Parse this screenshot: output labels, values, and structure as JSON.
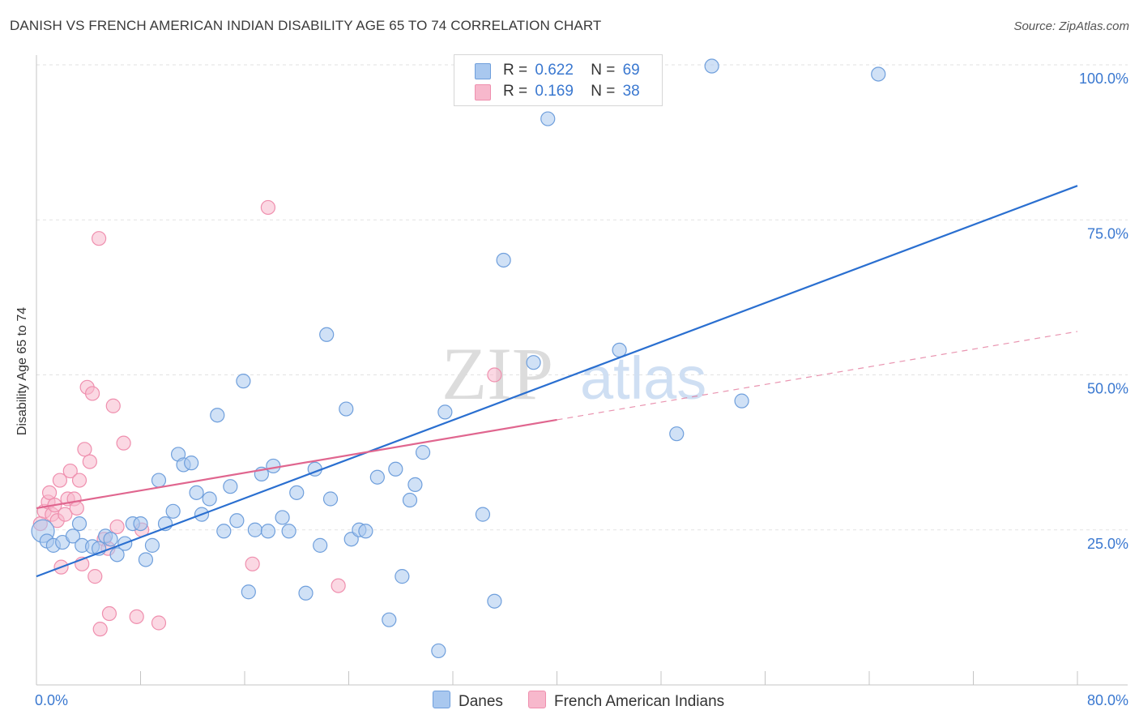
{
  "header": {
    "title": "DANISH VS FRENCH AMERICAN INDIAN DISABILITY AGE 65 TO 74 CORRELATION CHART",
    "source": "Source: ZipAtlas.com"
  },
  "watermark": {
    "zip": "ZIP",
    "atlas": "atlas"
  },
  "legend_top": {
    "rows": [
      {
        "r_label": "R =",
        "r_value": "0.622",
        "n_label": "N =",
        "n_value": "69"
      },
      {
        "r_label": "R =",
        "r_value": "0.169",
        "n_label": "N =",
        "n_value": "38"
      }
    ]
  },
  "legend_bottom": {
    "items": [
      "Danes",
      "French American Indians"
    ]
  },
  "colors": {
    "danes_fill": "#a9c8ef",
    "danes_stroke": "#6f9fdc",
    "danes_line": "#2a6fd0",
    "french_fill": "#f7b8cc",
    "french_stroke": "#ef8fae",
    "french_line": "#e0668f",
    "axis_label": "#3a78d0",
    "grid": "#e2e2e2"
  },
  "chart_data": {
    "type": "scatter",
    "title": "DANISH VS FRENCH AMERICAN INDIAN DISABILITY AGE 65 TO 74 CORRELATION CHART",
    "xlabel": "",
    "ylabel": "Disability Age 65 to 74",
    "xlim": [
      0,
      80
    ],
    "ylim": [
      0,
      100
    ],
    "x_tick_labels": [
      "0.0%",
      "80.0%"
    ],
    "y_ticks": [
      25,
      50,
      75,
      100
    ],
    "y_tick_labels": [
      "25.0%",
      "50.0%",
      "75.0%",
      "100.0%"
    ],
    "grid": true,
    "legend_position": "bottom",
    "series": [
      {
        "name": "Danes",
        "R": 0.622,
        "N": 69,
        "trend": {
          "x": [
            0,
            80
          ],
          "y": [
            17.5,
            80.5
          ],
          "dashed_from": null
        },
        "points": [
          [
            0.5,
            24.8,
            "big"
          ],
          [
            0.8,
            23.2
          ],
          [
            1.3,
            22.5
          ],
          [
            2.0,
            23.0
          ],
          [
            2.8,
            24.0
          ],
          [
            3.3,
            26.0
          ],
          [
            3.5,
            22.5
          ],
          [
            4.3,
            22.3
          ],
          [
            4.8,
            22.0
          ],
          [
            5.3,
            24.0
          ],
          [
            5.7,
            23.5
          ],
          [
            6.2,
            21.0
          ],
          [
            6.8,
            22.8
          ],
          [
            7.4,
            26.0
          ],
          [
            8.0,
            26.0
          ],
          [
            8.4,
            20.2
          ],
          [
            8.9,
            22.5
          ],
          [
            9.4,
            33.0
          ],
          [
            9.9,
            26.0
          ],
          [
            10.5,
            28.0
          ],
          [
            10.9,
            37.2
          ],
          [
            11.3,
            35.5
          ],
          [
            11.9,
            35.8
          ],
          [
            12.3,
            31.0
          ],
          [
            12.7,
            27.5
          ],
          [
            13.3,
            30.0
          ],
          [
            13.9,
            43.5
          ],
          [
            14.4,
            24.8
          ],
          [
            14.9,
            32.0
          ],
          [
            15.4,
            26.5
          ],
          [
            15.9,
            49.0
          ],
          [
            16.3,
            15.0
          ],
          [
            16.8,
            25.0
          ],
          [
            17.3,
            34.0
          ],
          [
            17.8,
            24.8
          ],
          [
            18.2,
            35.3
          ],
          [
            18.9,
            27.0
          ],
          [
            19.4,
            24.8
          ],
          [
            20.0,
            31.0
          ],
          [
            20.7,
            14.8
          ],
          [
            21.4,
            34.8
          ],
          [
            21.8,
            22.5
          ],
          [
            22.3,
            56.5
          ],
          [
            22.6,
            30.0
          ],
          [
            23.8,
            44.5
          ],
          [
            24.2,
            23.5
          ],
          [
            24.8,
            25.0
          ],
          [
            25.3,
            24.8
          ],
          [
            26.2,
            33.5
          ],
          [
            27.1,
            10.5
          ],
          [
            27.6,
            34.8
          ],
          [
            28.1,
            17.5
          ],
          [
            28.7,
            29.8
          ],
          [
            29.1,
            32.3
          ],
          [
            29.7,
            37.5
          ],
          [
            30.9,
            5.5
          ],
          [
            31.4,
            44.0
          ],
          [
            34.3,
            27.5
          ],
          [
            35.2,
            13.5
          ],
          [
            35.9,
            68.5
          ],
          [
            38.2,
            52.0
          ],
          [
            39.3,
            91.3
          ],
          [
            44.8,
            54.0
          ],
          [
            49.2,
            40.5
          ],
          [
            51.9,
            99.8
          ],
          [
            54.2,
            45.8
          ],
          [
            64.7,
            98.5
          ]
        ]
      },
      {
        "name": "French American Indians",
        "R": 0.169,
        "N": 38,
        "trend": {
          "x": [
            0,
            80
          ],
          "y": [
            28.5,
            57.0
          ],
          "dashed_from": 40
        },
        "points": [
          [
            0.3,
            26.0
          ],
          [
            0.6,
            28.0
          ],
          [
            0.9,
            29.5
          ],
          [
            1.0,
            31.0
          ],
          [
            1.2,
            27.5
          ],
          [
            1.4,
            29.0
          ],
          [
            1.6,
            26.5
          ],
          [
            1.8,
            33.0
          ],
          [
            1.9,
            19.0
          ],
          [
            2.2,
            27.5
          ],
          [
            2.4,
            30.0
          ],
          [
            2.6,
            34.5
          ],
          [
            2.9,
            30.0
          ],
          [
            3.1,
            28.5
          ],
          [
            3.3,
            33.0
          ],
          [
            3.5,
            19.5
          ],
          [
            3.7,
            38.0
          ],
          [
            3.9,
            48.0
          ],
          [
            4.1,
            36.0
          ],
          [
            4.3,
            47.0
          ],
          [
            4.5,
            17.5
          ],
          [
            4.8,
            72.0
          ],
          [
            4.9,
            9.0
          ],
          [
            5.2,
            23.5
          ],
          [
            5.5,
            22.0
          ],
          [
            5.6,
            11.5
          ],
          [
            5.9,
            45.0
          ],
          [
            6.2,
            25.5
          ],
          [
            6.7,
            39.0
          ],
          [
            7.7,
            11.0
          ],
          [
            8.1,
            25.0
          ],
          [
            9.4,
            10.0
          ],
          [
            16.6,
            19.5
          ],
          [
            17.8,
            77.0
          ],
          [
            23.2,
            16.0
          ],
          [
            35.2,
            50.0
          ]
        ]
      }
    ]
  }
}
